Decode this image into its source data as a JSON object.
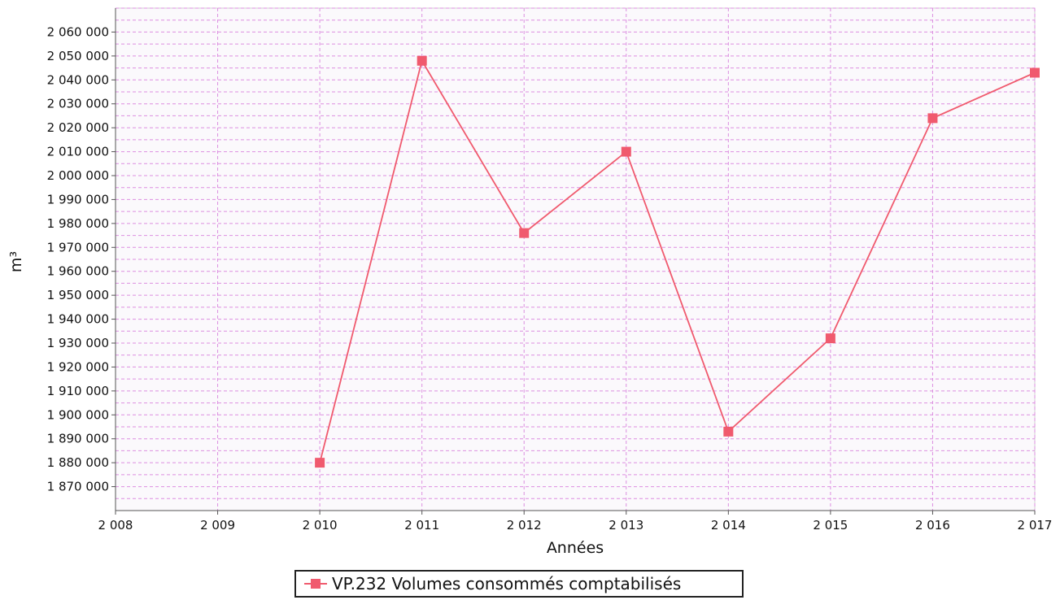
{
  "chart_data": {
    "type": "line",
    "xlabel": "Années",
    "ylabel": "m³",
    "xlim": [
      2008,
      2017
    ],
    "ylim": [
      1860000,
      2070000
    ],
    "x_ticks": [
      2008,
      2009,
      2010,
      2011,
      2012,
      2013,
      2014,
      2015,
      2016,
      2017
    ],
    "x_tick_labels": [
      "2 008",
      "2 009",
      "2 010",
      "2 011",
      "2 012",
      "2 013",
      "2 014",
      "2 015",
      "2 016",
      "2 017"
    ],
    "y_ticks": [
      1870000,
      1880000,
      1890000,
      1900000,
      1910000,
      1920000,
      1930000,
      1940000,
      1950000,
      1960000,
      1970000,
      1980000,
      1990000,
      2000000,
      2010000,
      2020000,
      2030000,
      2040000,
      2050000,
      2060000
    ],
    "y_tick_labels": [
      "1 870 000",
      "1 880 000",
      "1 890 000",
      "1 900 000",
      "1 910 000",
      "1 920 000",
      "1 930 000",
      "1 940 000",
      "1 950 000",
      "1 960 000",
      "1 970 000",
      "1 980 000",
      "1 990 000",
      "2 000 000",
      "2 010 000",
      "2 020 000",
      "2 030 000",
      "2 040 000",
      "2 050 000",
      "2 060 000"
    ],
    "grid": true,
    "legend_position": "bottom-center",
    "series": [
      {
        "name": "VP.232 Volumes consommés comptabilisés",
        "color": "#f05a6e",
        "marker": "square",
        "x": [
          2010,
          2011,
          2012,
          2013,
          2014,
          2015,
          2016,
          2017
        ],
        "y": [
          1880000,
          2048000,
          1976000,
          2010000,
          1893000,
          1932000,
          2024000,
          2043000
        ]
      }
    ]
  }
}
